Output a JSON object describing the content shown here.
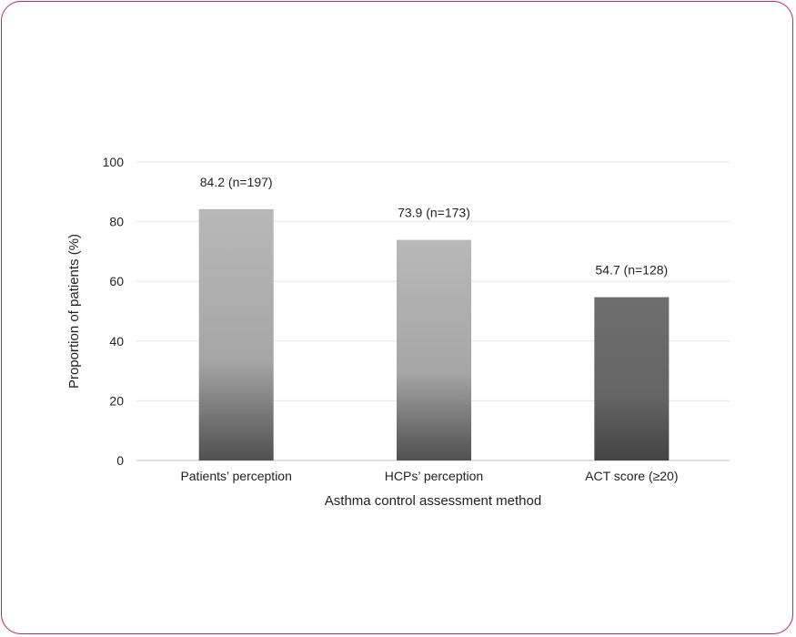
{
  "chart_data": {
    "type": "bar",
    "categories": [
      "Patients’ perception",
      "HCPs’ perception",
      "ACT score (≥20)"
    ],
    "values": [
      84.2,
      73.9,
      54.7
    ],
    "data_labels": [
      "84.2 (n=197)",
      "73.9 (n=173)",
      "54.7 (n=128)"
    ],
    "title": "",
    "xlabel": "Asthma control assessment method",
    "ylabel": "Proportion of patients (%)",
    "ylim": [
      0,
      100
    ],
    "yticks": [
      0,
      20,
      40,
      60,
      80,
      100
    ],
    "grid": true,
    "legend": "none"
  },
  "colors": {
    "frame_border": "#b5276e",
    "bar_top_light": "#b3b3b3",
    "bar_bottom_dark": "#505050",
    "bar3_top": "#6a6a6a",
    "gridline": "#e6e6e6",
    "axis": "#bdbdbd"
  }
}
